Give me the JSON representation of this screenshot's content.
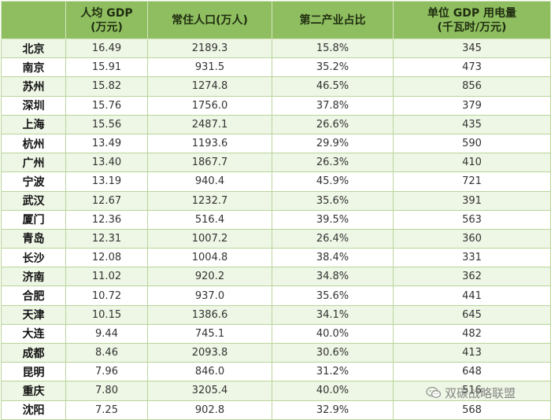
{
  "headers": {
    "city": "",
    "gdp": "人均 GDP\n(万元)",
    "population": "常住人口(万人)",
    "secondary": "第二产业占比",
    "electricity": "单位 GDP 用电量\n(千瓦时/万元)"
  },
  "rows": [
    {
      "city": "北京",
      "gdp": "16.49",
      "population": "2189.3",
      "secondary": "15.8%",
      "electricity": "345"
    },
    {
      "city": "南京",
      "gdp": "15.91",
      "population": "931.5",
      "secondary": "35.2%",
      "electricity": "473"
    },
    {
      "city": "苏州",
      "gdp": "15.82",
      "population": "1274.8",
      "secondary": "46.5%",
      "electricity": "856"
    },
    {
      "city": "深圳",
      "gdp": "15.76",
      "population": "1756.0",
      "secondary": "37.8%",
      "electricity": "379"
    },
    {
      "city": "上海",
      "gdp": "15.56",
      "population": "2487.1",
      "secondary": "26.6%",
      "electricity": "435"
    },
    {
      "city": "杭州",
      "gdp": "13.49",
      "population": "1193.6",
      "secondary": "29.9%",
      "electricity": "590"
    },
    {
      "city": "广州",
      "gdp": "13.40",
      "population": "1867.7",
      "secondary": "26.3%",
      "electricity": "410"
    },
    {
      "city": "宁波",
      "gdp": "13.19",
      "population": "940.4",
      "secondary": "45.9%",
      "electricity": "721"
    },
    {
      "city": "武汉",
      "gdp": "12.67",
      "population": "1232.7",
      "secondary": "35.6%",
      "electricity": "391"
    },
    {
      "city": "厦门",
      "gdp": "12.36",
      "population": "516.4",
      "secondary": "39.5%",
      "electricity": "563"
    },
    {
      "city": "青岛",
      "gdp": "12.31",
      "population": "1007.2",
      "secondary": "26.4%",
      "electricity": "360"
    },
    {
      "city": "长沙",
      "gdp": "12.08",
      "population": "1004.8",
      "secondary": "38.4%",
      "electricity": "331"
    },
    {
      "city": "济南",
      "gdp": "11.02",
      "population": "920.2",
      "secondary": "34.8%",
      "electricity": "362"
    },
    {
      "city": "合肥",
      "gdp": "10.72",
      "population": "937.0",
      "secondary": "35.6%",
      "electricity": "441"
    },
    {
      "city": "天津",
      "gdp": "10.15",
      "population": "1386.6",
      "secondary": "34.1%",
      "electricity": "645"
    },
    {
      "city": "大连",
      "gdp": "9.44",
      "population": "745.1",
      "secondary": "40.0%",
      "electricity": "482"
    },
    {
      "city": "成都",
      "gdp": "8.46",
      "population": "2093.8",
      "secondary": "30.6%",
      "electricity": "413"
    },
    {
      "city": "昆明",
      "gdp": "7.96",
      "population": "846.0",
      "secondary": "31.2%",
      "electricity": "648"
    },
    {
      "city": "重庆",
      "gdp": "7.80",
      "population": "3205.4",
      "secondary": "40.0%",
      "electricity": "516"
    },
    {
      "city": "沈阳",
      "gdp": "7.25",
      "population": "902.8",
      "secondary": "32.9%",
      "electricity": "568"
    }
  ],
  "watermark": {
    "text": "双碳战略联盟",
    "icon": "wechat-icon"
  },
  "colors": {
    "header_bg": "#8fbe60",
    "stripe": "#eef6e5",
    "border": "#b9d59a"
  }
}
